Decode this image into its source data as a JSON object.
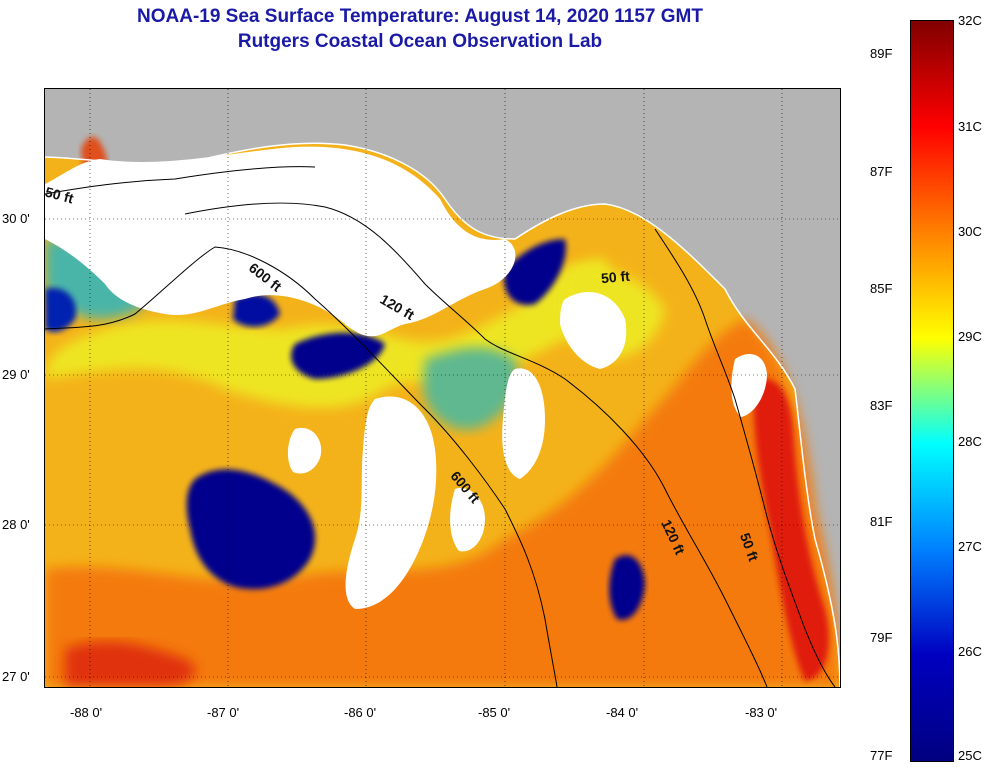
{
  "title": {
    "line1": "NOAA-19 Sea Surface Temperature:  August 14, 2020 1157 GMT",
    "line2": "Rutgers Coastal Ocean Observation Lab"
  },
  "map": {
    "lon_labels": [
      "-88 0'",
      "-87 0'",
      "-86 0'",
      "-85 0'",
      "-84 0'",
      "-83 0'"
    ],
    "lat_labels": [
      "30 0'",
      "29 0'",
      "28 0'",
      "27 0'"
    ],
    "contour_labels": [
      "50 ft",
      "600 ft",
      "120 ft",
      "50 ft",
      "600 ft",
      "120 ft",
      "50 ft"
    ]
  },
  "colorbar": {
    "celsius_labels": [
      "32C",
      "31C",
      "30C",
      "29C",
      "28C",
      "27C",
      "26C",
      "25C"
    ],
    "fahrenheit_labels": [
      "89F",
      "87F",
      "85F",
      "83F",
      "81F",
      "79F",
      "77F"
    ],
    "colors": [
      "#800000",
      "#ff0000",
      "#ff8000",
      "#ffff00",
      "#00ffff",
      "#0080ff",
      "#0000c0",
      "#000080"
    ]
  },
  "colors": {
    "title": "#1a1aa6",
    "land": "#b4b4b4",
    "clouds": "#ffffff",
    "cold": "#00008c",
    "teal": "#4ab5a8",
    "yellow": "#f2e81c",
    "orange": "#f47a10",
    "red": "#e01a0e"
  }
}
